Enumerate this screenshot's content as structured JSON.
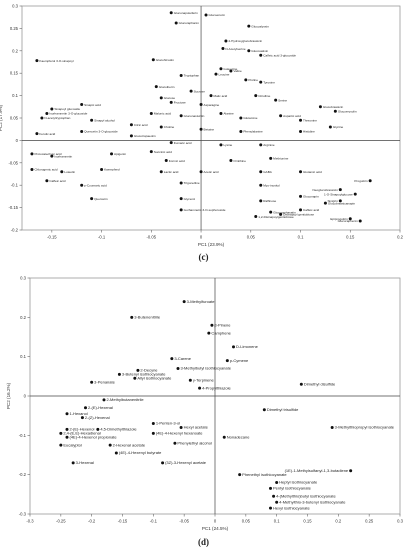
{
  "panels": [
    {
      "label": "(c)"
    },
    {
      "label": "(d)"
    }
  ],
  "chart_data": [
    {
      "type": "scatter",
      "xlabel": "PC1 (23.9%)",
      "ylabel": "PC2 (17.9%)",
      "xlim": [
        -0.18,
        0.2
      ],
      "ylim": [
        -0.2,
        0.3
      ],
      "xticks": [
        -0.15,
        -0.1,
        -0.05,
        0,
        0.05,
        0.1,
        0.15,
        0.2
      ],
      "yticks": [
        -0.2,
        -0.15,
        -0.1,
        -0.05,
        0,
        0.05,
        0.1,
        0.15,
        0.2,
        0.25,
        0.3
      ],
      "grid": false,
      "points": [
        {
          "x": -0.03,
          "y": 0.285,
          "label": "Gluconapoleiferin"
        },
        {
          "x": 0.005,
          "y": 0.28,
          "label": "Glucoerucin"
        },
        {
          "x": -0.025,
          "y": 0.262,
          "label": "Glucoraphanin"
        },
        {
          "x": 0.048,
          "y": 0.255,
          "label": "Glucoalyssin"
        },
        {
          "x": 0.025,
          "y": 0.222,
          "label": "4-Hydroxyglucobrassicin"
        },
        {
          "x": 0.022,
          "y": 0.205,
          "label": "N-Acetylserine"
        },
        {
          "x": 0.048,
          "y": 0.2,
          "label": "Glucosativin"
        },
        {
          "x": 0.06,
          "y": 0.19,
          "label": "Caffeic acid 3-glucoside"
        },
        {
          "x": -0.048,
          "y": 0.18,
          "label": "Glucohirsutin"
        },
        {
          "x": -0.165,
          "y": 0.178,
          "label": "Kaempferol 3-O-sinapoyl"
        },
        {
          "x": 0.02,
          "y": 0.16,
          "label": "Isoleucine"
        },
        {
          "x": 0.03,
          "y": 0.155,
          "label": "Valine"
        },
        {
          "x": 0.015,
          "y": 0.148,
          "label": "Leucine"
        },
        {
          "x": -0.02,
          "y": 0.145,
          "label": "Tryptophan"
        },
        {
          "x": 0.045,
          "y": 0.135,
          "label": "Proline"
        },
        {
          "x": 0.06,
          "y": 0.13,
          "label": "Tyrosine"
        },
        {
          "x": -0.045,
          "y": 0.12,
          "label": "Glucoiberin"
        },
        {
          "x": -0.01,
          "y": 0.11,
          "label": "Sucrose"
        },
        {
          "x": 0.01,
          "y": 0.1,
          "label": "Malic acid"
        },
        {
          "x": 0.055,
          "y": 0.1,
          "label": "Citrulline"
        },
        {
          "x": -0.04,
          "y": 0.095,
          "label": "Glucose"
        },
        {
          "x": 0.075,
          "y": 0.09,
          "label": "Serine"
        },
        {
          "x": -0.12,
          "y": 0.08,
          "label": "Sinapic acid"
        },
        {
          "x": -0.03,
          "y": 0.085,
          "label": "Fructose"
        },
        {
          "x": 0.0,
          "y": 0.08,
          "label": "Asparagine"
        },
        {
          "x": 0.12,
          "y": 0.075,
          "label": "Glucobrassicin"
        },
        {
          "x": -0.15,
          "y": 0.07,
          "label": "Sinapoyl glucoside"
        },
        {
          "x": -0.155,
          "y": 0.06,
          "label": "Isorhamnetin 3-O-glucoside"
        },
        {
          "x": -0.16,
          "y": 0.05,
          "label": "N-acetyltryptophan"
        },
        {
          "x": -0.11,
          "y": 0.045,
          "label": "Sinapyl alcohol"
        },
        {
          "x": -0.05,
          "y": 0.06,
          "label": "Malonic acid"
        },
        {
          "x": -0.02,
          "y": 0.055,
          "label": "Gluconasturtiin"
        },
        {
          "x": 0.02,
          "y": 0.06,
          "label": "Alanine"
        },
        {
          "x": 0.04,
          "y": 0.05,
          "label": "Glutamine"
        },
        {
          "x": 0.08,
          "y": 0.055,
          "label": "Aspartic acid"
        },
        {
          "x": 0.1,
          "y": 0.045,
          "label": "Threonine"
        },
        {
          "x": 0.135,
          "y": 0.065,
          "label": "Glucoerysolin"
        },
        {
          "x": -0.07,
          "y": 0.035,
          "label": "Citric acid"
        },
        {
          "x": -0.04,
          "y": 0.03,
          "label": "Choline"
        },
        {
          "x": 0.0,
          "y": 0.025,
          "label": "Betaine"
        },
        {
          "x": 0.04,
          "y": 0.02,
          "label": "Phenylalanine"
        },
        {
          "x": 0.1,
          "y": 0.02,
          "label": "Histidine"
        },
        {
          "x": 0.13,
          "y": 0.03,
          "label": "Glycine"
        },
        {
          "x": -0.165,
          "y": 0.015,
          "label": "Ferulic acid"
        },
        {
          "x": -0.12,
          "y": 0.02,
          "label": "Quercetin 3-O-glucoside"
        },
        {
          "x": -0.07,
          "y": 0.01,
          "label": "Glucotropaeolin"
        },
        {
          "x": -0.03,
          "y": -0.005,
          "label": "Fumaric acid"
        },
        {
          "x": 0.02,
          "y": -0.01,
          "label": "Lysine"
        },
        {
          "x": 0.06,
          "y": -0.01,
          "label": "Arginine"
        },
        {
          "x": -0.17,
          "y": -0.03,
          "label": "Protocatechuic acid"
        },
        {
          "x": -0.15,
          "y": -0.035,
          "label": "Isorhamnetin"
        },
        {
          "x": -0.09,
          "y": -0.03,
          "label": "Apigenin"
        },
        {
          "x": -0.05,
          "y": -0.025,
          "label": "Succinic acid"
        },
        {
          "x": -0.035,
          "y": -0.045,
          "label": "Formic acid"
        },
        {
          "x": 0.03,
          "y": -0.045,
          "label": "Ornithine"
        },
        {
          "x": 0.07,
          "y": -0.04,
          "label": "Methionine"
        },
        {
          "x": -0.17,
          "y": -0.065,
          "label": "Chlorogenic acid"
        },
        {
          "x": -0.14,
          "y": -0.07,
          "label": "Luteolin"
        },
        {
          "x": -0.1,
          "y": -0.065,
          "label": "Kaempferol"
        },
        {
          "x": -0.04,
          "y": -0.07,
          "label": "Lactic acid"
        },
        {
          "x": 0.0,
          "y": -0.07,
          "label": "Acetic acid"
        },
        {
          "x": 0.06,
          "y": -0.07,
          "label": "GABA"
        },
        {
          "x": 0.1,
          "y": -0.07,
          "label": "Glutamic acid"
        },
        {
          "x": -0.155,
          "y": -0.09,
          "label": "Caffeic acid"
        },
        {
          "x": -0.12,
          "y": -0.1,
          "label": "p-Coumaric acid"
        },
        {
          "x": -0.02,
          "y": -0.095,
          "label": "Trigonelline"
        },
        {
          "x": 0.06,
          "y": -0.1,
          "label": "Myo-inositol"
        },
        {
          "x": 0.17,
          "y": -0.09,
          "label": "Progoitrin"
        },
        {
          "x": 0.14,
          "y": -0.11,
          "label": "Neoglucobrassicin"
        },
        {
          "x": 0.155,
          "y": -0.12,
          "label": "1-O-Sinapoylglucose"
        },
        {
          "x": 0.1,
          "y": -0.125,
          "label": "Gluconapin"
        },
        {
          "x": -0.11,
          "y": -0.13,
          "label": "Quercetin"
        },
        {
          "x": -0.02,
          "y": -0.13,
          "label": "Glycerol"
        },
        {
          "x": 0.06,
          "y": -0.135,
          "label": "Raffinose"
        },
        {
          "x": 0.14,
          "y": -0.135,
          "label": "Sinigrin"
        },
        {
          "x": 0.125,
          "y": -0.14,
          "label": "Glucobrassicanapin"
        },
        {
          "x": -0.02,
          "y": -0.155,
          "label": "Isorhamnetin 3-O-sophoroside"
        },
        {
          "x": 0.07,
          "y": -0.16,
          "label": "Glucoraphasatin"
        },
        {
          "x": 0.1,
          "y": -0.155,
          "label": "Caffeic acid"
        },
        {
          "x": 0.08,
          "y": -0.165,
          "label": "Disinapoyl gentiobiose"
        },
        {
          "x": 0.055,
          "y": -0.17,
          "label": "1,2-Disinapoylgentiobiose"
        },
        {
          "x": 0.15,
          "y": -0.175,
          "label": "Epiprogoitrin"
        },
        {
          "x": 0.16,
          "y": -0.18,
          "label": "Glucoraphenin"
        }
      ]
    },
    {
      "type": "scatter",
      "xlabel": "PC1 (24.5%)",
      "ylabel": "PC2 (16.2%)",
      "xlim": [
        -0.3,
        0.3
      ],
      "ylim": [
        -0.3,
        0.3
      ],
      "xticks": [
        -0.3,
        -0.25,
        -0.2,
        -0.15,
        -0.1,
        -0.05,
        0,
        0.05,
        0.1,
        0.15,
        0.2,
        0.25,
        0.3
      ],
      "yticks": [
        -0.3,
        -0.2,
        -0.1,
        0,
        0.1,
        0.2,
        0.3
      ],
      "grid": false,
      "points": [
        {
          "x": -0.05,
          "y": 0.24,
          "label": "3-Methylfuroate"
        },
        {
          "x": -0.135,
          "y": 0.2,
          "label": "3-Butenenitrile"
        },
        {
          "x": -0.005,
          "y": 0.18,
          "label": "β-Pinene"
        },
        {
          "x": -0.01,
          "y": 0.16,
          "label": "Camphene"
        },
        {
          "x": 0.03,
          "y": 0.125,
          "label": "D-Limonene"
        },
        {
          "x": -0.07,
          "y": 0.095,
          "label": "3-Carene"
        },
        {
          "x": 0.02,
          "y": 0.09,
          "label": "p-Cymene"
        },
        {
          "x": -0.06,
          "y": 0.07,
          "label": "3-Methylbutyl isothiocyanate"
        },
        {
          "x": -0.125,
          "y": 0.065,
          "label": "2-Decyne"
        },
        {
          "x": -0.155,
          "y": 0.055,
          "label": "3-Butenyl isothiocyanate"
        },
        {
          "x": -0.13,
          "y": 0.045,
          "label": "Allyl isothiocyanate"
        },
        {
          "x": -0.04,
          "y": 0.04,
          "label": "γ-Terpinene"
        },
        {
          "x": -0.2,
          "y": 0.035,
          "label": "3-Penanate"
        },
        {
          "x": -0.025,
          "y": 0.02,
          "label": "4-Propylthiazole"
        },
        {
          "x": 0.14,
          "y": 0.03,
          "label": "Dimethyl disulfide"
        },
        {
          "x": -0.18,
          "y": -0.01,
          "label": "2-Methylbutanenitrile"
        },
        {
          "x": -0.21,
          "y": -0.03,
          "label": "2-(E)-Hexenal"
        },
        {
          "x": -0.24,
          "y": -0.045,
          "label": "1-Hexanol"
        },
        {
          "x": -0.215,
          "y": -0.055,
          "label": "2-(Z)-Hexenal"
        },
        {
          "x": 0.08,
          "y": -0.035,
          "label": "Dimethyl trisulfide"
        },
        {
          "x": -0.1,
          "y": -0.07,
          "label": "1-Penten-3-ol"
        },
        {
          "x": -0.19,
          "y": -0.085,
          "label": "4,5-Dimethylthiazole"
        },
        {
          "x": -0.24,
          "y": -0.085,
          "label": "2-(E)-Hexenol"
        },
        {
          "x": -0.25,
          "y": -0.095,
          "label": "2,4-(E,E)-Hexadienal"
        },
        {
          "x": -0.055,
          "y": -0.08,
          "label": "Hexyl acetate"
        },
        {
          "x": -0.1,
          "y": -0.095,
          "label": "(4E)-4-Hexenyl hexanoate"
        },
        {
          "x": -0.24,
          "y": -0.105,
          "label": "(4E)-4-Hexenol propionate"
        },
        {
          "x": 0.19,
          "y": -0.08,
          "label": "3-Methylthiopropyl isothiocyanate"
        },
        {
          "x": 0.015,
          "y": -0.105,
          "label": "Nonadecane"
        },
        {
          "x": -0.065,
          "y": -0.12,
          "label": "Phenylethyl alcohol"
        },
        {
          "x": -0.25,
          "y": -0.125,
          "label": "Eucalyptol"
        },
        {
          "x": -0.17,
          "y": -0.125,
          "label": "2-Hexenal acetate"
        },
        {
          "x": -0.16,
          "y": -0.145,
          "label": "(4E)-4-Hexenyl butyrate"
        },
        {
          "x": -0.23,
          "y": -0.17,
          "label": "3-Hexenal"
        },
        {
          "x": -0.085,
          "y": -0.17,
          "label": "(3Z)-3-Hexenyl acetate"
        },
        {
          "x": 0.22,
          "y": -0.19,
          "label": "(1E)-1-Methylsulfanyl-1,3-butadiene"
        },
        {
          "x": 0.04,
          "y": -0.2,
          "label": "Phenethyl isothiocyanate"
        },
        {
          "x": 0.1,
          "y": -0.22,
          "label": "Heptyl isothiocyanate"
        },
        {
          "x": 0.09,
          "y": -0.235,
          "label": "Pentyl isothiocyanate"
        },
        {
          "x": 0.095,
          "y": -0.255,
          "label": "4-(Methylthio)butyl isothiocyanate"
        },
        {
          "x": 0.1,
          "y": -0.27,
          "label": "4-Methylthio-3-butenyl isothiocyanate"
        },
        {
          "x": 0.09,
          "y": -0.285,
          "label": "Hexyl isothiocyanate"
        }
      ]
    }
  ]
}
